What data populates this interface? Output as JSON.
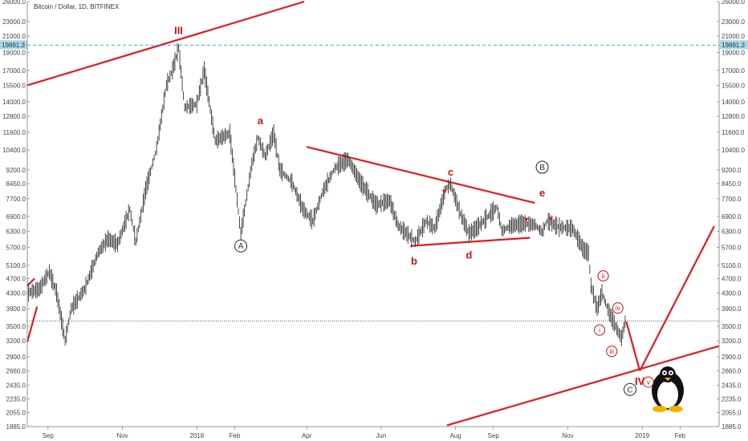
{
  "chart_data": {
    "type": "line",
    "title": "Bitcoin / Dollar, 1D, BITFINEX",
    "y_scale": "log",
    "ylim": [
      1885,
      26000
    ],
    "y_ticks": [
      1885,
      2055,
      2235,
      2435,
      2660,
      2900,
      3200,
      3500,
      3900,
      4300,
      4700,
      5100,
      5700,
      6300,
      6900,
      7700,
      8450,
      9200,
      10400,
      11600,
      12800,
      14000,
      15500,
      17000,
      19000,
      21000,
      23000,
      26000
    ],
    "y_tick_labels": [
      "1885.0",
      "2055.0",
      "2235.0",
      "2435.0",
      "2660.0",
      "2900.0",
      "3200.0",
      "3500.0",
      "3900.0",
      "4300.0",
      "4700.0",
      "5100.0",
      "5700.0",
      "6300.0",
      "6900.0",
      "7700.0",
      "8450.0",
      "9200.0",
      "10400.0",
      "11600.0",
      "12800.0",
      "14000.0",
      "15500.0",
      "17000.0",
      "19000.0",
      "21000.0",
      "23000.0",
      "26000.0"
    ],
    "xlim": [
      "2017-08-15",
      "2019-03-05"
    ],
    "x_ticks": [
      {
        "date": "2017-09-01",
        "label": "Sep"
      },
      {
        "date": "2017-11-01",
        "label": "Nov"
      },
      {
        "date": "2018-01-01",
        "label": "2018"
      },
      {
        "date": "2018-02-01",
        "label": "Feb"
      },
      {
        "date": "2018-04-01",
        "label": "Apr"
      },
      {
        "date": "2018-06-01",
        "label": "Jun"
      },
      {
        "date": "2018-08-01",
        "label": "Aug"
      },
      {
        "date": "2018-09-01",
        "label": "Sep"
      },
      {
        "date": "2018-11-01",
        "label": "Nov"
      },
      {
        "date": "2019-01-01",
        "label": "2019"
      },
      {
        "date": "2019-02-01",
        "label": "Feb"
      }
    ],
    "price_path": [
      [
        "2017-08-15",
        4300
      ],
      [
        "2017-08-25",
        4400
      ],
      [
        "2017-09-02",
        4900
      ],
      [
        "2017-09-08",
        4300
      ],
      [
        "2017-09-15",
        3200
      ],
      [
        "2017-09-20",
        3900
      ],
      [
        "2017-10-01",
        4400
      ],
      [
        "2017-10-12",
        5500
      ],
      [
        "2017-10-20",
        6000
      ],
      [
        "2017-10-28",
        5800
      ],
      [
        "2017-11-07",
        7200
      ],
      [
        "2017-11-12",
        5900
      ],
      [
        "2017-11-20",
        8100
      ],
      [
        "2017-11-29",
        10500
      ],
      [
        "2017-12-07",
        15500
      ],
      [
        "2017-12-12",
        17000
      ],
      [
        "2017-12-17",
        19500
      ],
      [
        "2017-12-22",
        13500
      ],
      [
        "2018-01-01",
        13800
      ],
      [
        "2018-01-07",
        17000
      ],
      [
        "2018-01-16",
        11000
      ],
      [
        "2018-01-28",
        11500
      ],
      [
        "2018-02-06",
        6200
      ],
      [
        "2018-02-15",
        9500
      ],
      [
        "2018-02-20",
        11200
      ],
      [
        "2018-02-26",
        10000
      ],
      [
        "2018-03-05",
        11500
      ],
      [
        "2018-03-10",
        9200
      ],
      [
        "2018-03-20",
        8500
      ],
      [
        "2018-03-29",
        7200
      ],
      [
        "2018-04-06",
        6700
      ],
      [
        "2018-04-14",
        8000
      ],
      [
        "2018-04-24",
        9300
      ],
      [
        "2018-05-05",
        9800
      ],
      [
        "2018-05-15",
        8500
      ],
      [
        "2018-05-28",
        7400
      ],
      [
        "2018-06-08",
        7600
      ],
      [
        "2018-06-15",
        6500
      ],
      [
        "2018-06-29",
        5900
      ],
      [
        "2018-07-08",
        6700
      ],
      [
        "2018-07-15",
        6400
      ],
      [
        "2018-07-24",
        8200
      ],
      [
        "2018-07-28",
        8400
      ],
      [
        "2018-08-05",
        7000
      ],
      [
        "2018-08-12",
        6200
      ],
      [
        "2018-08-18",
        6400
      ],
      [
        "2018-09-04",
        7300
      ],
      [
        "2018-09-08",
        6300
      ],
      [
        "2018-09-15",
        6500
      ],
      [
        "2018-09-25",
        6600
      ],
      [
        "2018-10-05",
        6550
      ],
      [
        "2018-10-11",
        6250
      ],
      [
        "2018-10-15",
        6700
      ],
      [
        "2018-10-25",
        6450
      ],
      [
        "2018-11-05",
        6400
      ],
      [
        "2018-11-14",
        5600
      ],
      [
        "2018-11-18",
        5500
      ],
      [
        "2018-11-20",
        4500
      ],
      [
        "2018-11-25",
        3900
      ],
      [
        "2018-11-29",
        4300
      ],
      [
        "2018-12-05",
        3800
      ],
      [
        "2018-12-10",
        3500
      ],
      [
        "2018-12-15",
        3250
      ],
      [
        "2018-12-18",
        3600
      ]
    ],
    "horizontal_lines": [
      {
        "price": 19881.3,
        "label": "19881.3",
        "color": "#3aa7c7",
        "style": "dashed"
      },
      {
        "price": 3620,
        "color": "#555555",
        "style": "dotted"
      }
    ],
    "trendlines": [
      {
        "from": [
          "2017-08-15",
          15500
        ],
        "to": [
          "2018-03-30",
          26000
        ],
        "color": "#e31b1b"
      },
      {
        "from": [
          "2018-04-01",
          10600
        ],
        "to": [
          "2018-10-05",
          7500
        ],
        "color": "#e31b1b"
      },
      {
        "from": [
          "2018-06-25",
          5750
        ],
        "to": [
          "2018-10-01",
          6050
        ],
        "color": "#e31b1b"
      },
      {
        "from": [
          "2017-08-15",
          3180
        ],
        "to": [
          "2017-08-23",
          3950
        ],
        "color": "#e31b1b"
      },
      {
        "from": [
          "2017-08-15",
          4500
        ],
        "to": [
          "2017-08-21",
          4700
        ],
        "color": "#e31b1b"
      },
      {
        "from": [
          "2018-07-25",
          1900
        ],
        "to": [
          "2019-03-05",
          3100
        ],
        "color": "#e31b1b"
      },
      {
        "from": [
          "2018-12-19",
          3600
        ],
        "to": [
          "2018-12-30",
          2660
        ],
        "color": "#e31b1b"
      },
      {
        "from": [
          "2018-12-30",
          2660
        ],
        "to": [
          "2019-03-01",
          6500
        ],
        "color": "#e31b1b"
      }
    ],
    "wave_labels": [
      {
        "text": "III",
        "date": "2017-12-17",
        "price": 21800,
        "style": "red-bold"
      },
      {
        "text": "a",
        "date": "2018-02-22",
        "price": 12500,
        "style": "red-bold"
      },
      {
        "text": "c",
        "date": "2018-07-28",
        "price": 9100,
        "style": "red-bold"
      },
      {
        "text": "e",
        "date": "2018-10-11",
        "price": 8000,
        "style": "red-bold"
      },
      {
        "text": "b",
        "date": "2018-06-28",
        "price": 5250,
        "style": "red-bold"
      },
      {
        "text": "d",
        "date": "2018-08-12",
        "price": 5450,
        "style": "red-bold"
      },
      {
        "text": "IV",
        "date": "2018-12-30",
        "price": 2500,
        "style": "red-bold"
      },
      {
        "text": "A",
        "date": "2018-02-06",
        "price": 5750,
        "style": "circle-black"
      },
      {
        "text": "B",
        "date": "2018-10-11",
        "price": 9350,
        "style": "circle-black"
      },
      {
        "text": "C",
        "date": "2018-12-22",
        "price": 2370,
        "style": "circle-black"
      },
      {
        "text": "ii",
        "date": "2018-11-30",
        "price": 4780,
        "style": "circle-red"
      },
      {
        "text": "iv",
        "date": "2018-12-12",
        "price": 3920,
        "style": "circle-red"
      },
      {
        "text": "i",
        "date": "2018-11-27",
        "price": 3420,
        "style": "circle-red"
      },
      {
        "text": "iii",
        "date": "2018-12-07",
        "price": 3000,
        "style": "circle-red"
      },
      {
        "text": "v",
        "date": "2019-01-06",
        "price": 2480,
        "style": "circle-red"
      }
    ],
    "markers": [
      {
        "date": "2018-07-23",
        "price": 8000
      },
      {
        "date": "2018-09-28",
        "price": 6740
      },
      {
        "date": "2018-10-18",
        "price": 6780
      }
    ]
  }
}
